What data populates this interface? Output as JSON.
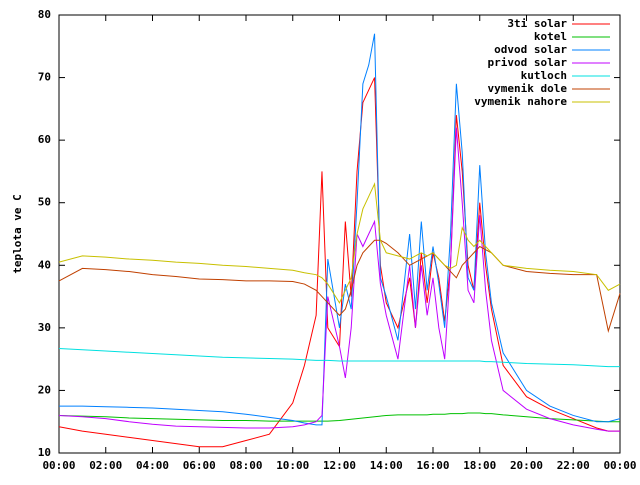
{
  "chart_data": {
    "type": "line",
    "y_label": "teplota ve C",
    "x": [
      0,
      1,
      2,
      3,
      4,
      5,
      6,
      7,
      8,
      9,
      10,
      10.5,
      11,
      11.25,
      11.5,
      12,
      12.25,
      12.5,
      12.75,
      13,
      13.25,
      13.5,
      13.75,
      14,
      14.5,
      15,
      15.25,
      15.5,
      15.75,
      16,
      16.25,
      16.5,
      16.75,
      17,
      17.25,
      17.5,
      17.75,
      18,
      18.25,
      18.5,
      19,
      20,
      21,
      22,
      23,
      23.5,
      24
    ],
    "xlim": [
      0,
      24
    ],
    "xticks": [
      {
        "value": 0,
        "label": "00:00"
      },
      {
        "value": 2,
        "label": "02:00"
      },
      {
        "value": 4,
        "label": "04:00"
      },
      {
        "value": 6,
        "label": "06:00"
      },
      {
        "value": 8,
        "label": "08:00"
      },
      {
        "value": 10,
        "label": "10:00"
      },
      {
        "value": 12,
        "label": "12:00"
      },
      {
        "value": 14,
        "label": "14:00"
      },
      {
        "value": 16,
        "label": "16:00"
      },
      {
        "value": 18,
        "label": "18:00"
      },
      {
        "value": 20,
        "label": "20:00"
      },
      {
        "value": 22,
        "label": "22:00"
      },
      {
        "value": 24,
        "label": "00:00"
      }
    ],
    "ylim": [
      10,
      80
    ],
    "yticks": [
      10,
      20,
      30,
      40,
      50,
      60,
      70,
      80
    ],
    "legend": "top-right",
    "series": [
      {
        "name": "3ti solar",
        "color": "#ff0000",
        "values": [
          14.2,
          13.5,
          13,
          12.5,
          12,
          11.5,
          11,
          11,
          12,
          13,
          18,
          24,
          32,
          55,
          30,
          27,
          47,
          35,
          55,
          66,
          68,
          70,
          40,
          34,
          30,
          38,
          30,
          42,
          34,
          42,
          38,
          31,
          40,
          64,
          55,
          40,
          36,
          50,
          40,
          33,
          24,
          19,
          17,
          15.5,
          14,
          13.5,
          13.5
        ]
      },
      {
        "name": "kotel",
        "color": "#00c000",
        "values": [
          16,
          15.9,
          15.8,
          15.6,
          15.5,
          15.4,
          15.3,
          15.2,
          15.2,
          15.1,
          15.1,
          15.1,
          15.1,
          15.1,
          15.1,
          15.2,
          15.3,
          15.4,
          15.5,
          15.6,
          15.7,
          15.8,
          15.9,
          16,
          16.1,
          16.1,
          16.1,
          16.1,
          16.1,
          16.2,
          16.2,
          16.2,
          16.3,
          16.3,
          16.3,
          16.4,
          16.4,
          16.4,
          16.3,
          16.3,
          16.1,
          15.8,
          15.5,
          15.3,
          15.1,
          15,
          15
        ]
      },
      {
        "name": "odvod solar",
        "color": "#0080ff",
        "values": [
          17.5,
          17.5,
          17.4,
          17.3,
          17.2,
          17,
          16.8,
          16.6,
          16.2,
          15.7,
          15.2,
          14.8,
          14.5,
          14.5,
          41,
          30,
          37,
          33,
          50,
          69,
          72,
          77,
          38,
          35,
          28,
          45,
          33,
          47,
          36,
          43,
          37,
          30,
          45,
          69,
          58,
          38,
          36,
          56,
          42,
          34,
          26,
          20,
          17.5,
          16,
          15,
          15,
          15.5
        ]
      },
      {
        "name": "privod solar",
        "color": "#c000ff",
        "values": [
          16,
          15.8,
          15.5,
          15,
          14.6,
          14.3,
          14.2,
          14.1,
          14,
          14,
          14.2,
          14.5,
          15,
          16,
          35,
          27,
          22,
          30,
          45,
          43,
          45,
          47,
          37,
          32,
          25,
          40,
          30,
          40,
          32,
          38,
          30,
          25,
          40,
          62,
          50,
          36,
          34,
          48,
          36,
          28,
          20,
          17,
          15.5,
          14.5,
          13.8,
          13.5,
          13.5
        ]
      },
      {
        "name": "kutloch",
        "color": "#00e0e0",
        "values": [
          26.7,
          26.5,
          26.3,
          26.1,
          25.9,
          25.7,
          25.5,
          25.3,
          25.2,
          25.1,
          25,
          24.9,
          24.8,
          24.8,
          24.8,
          24.7,
          24.7,
          24.7,
          24.7,
          24.7,
          24.7,
          24.7,
          24.7,
          24.7,
          24.7,
          24.7,
          24.7,
          24.7,
          24.7,
          24.7,
          24.7,
          24.7,
          24.7,
          24.7,
          24.7,
          24.7,
          24.7,
          24.7,
          24.6,
          24.6,
          24.5,
          24.3,
          24.2,
          24.1,
          23.9,
          23.8,
          23.8
        ]
      },
      {
        "name": "vymenik dole",
        "color": "#c04000",
        "values": [
          37.5,
          39.5,
          39.3,
          39,
          38.5,
          38.2,
          37.8,
          37.7,
          37.5,
          37.5,
          37.4,
          37,
          36,
          35,
          34,
          32,
          33,
          36,
          40,
          42,
          43,
          44,
          44,
          43.5,
          42,
          40,
          40.5,
          41,
          41.5,
          42,
          41,
          40,
          39,
          38,
          40,
          41,
          42,
          43,
          42.5,
          42,
          40,
          39,
          38.7,
          38.5,
          38.5,
          29.5,
          35.5
        ]
      },
      {
        "name": "vymenik nahore",
        "color": "#c8c000",
        "values": [
          40.5,
          41.5,
          41.3,
          41,
          40.8,
          40.5,
          40.3,
          40,
          39.8,
          39.5,
          39.2,
          38.8,
          38.5,
          38,
          37,
          34,
          36,
          38,
          45,
          49,
          51,
          53,
          44,
          42,
          41.5,
          41,
          41.5,
          42,
          41.5,
          42,
          41,
          40,
          39.5,
          40,
          46,
          44,
          43,
          44,
          43,
          42,
          40,
          39.5,
          39.2,
          39,
          38.5,
          36,
          37
        ]
      }
    ]
  }
}
